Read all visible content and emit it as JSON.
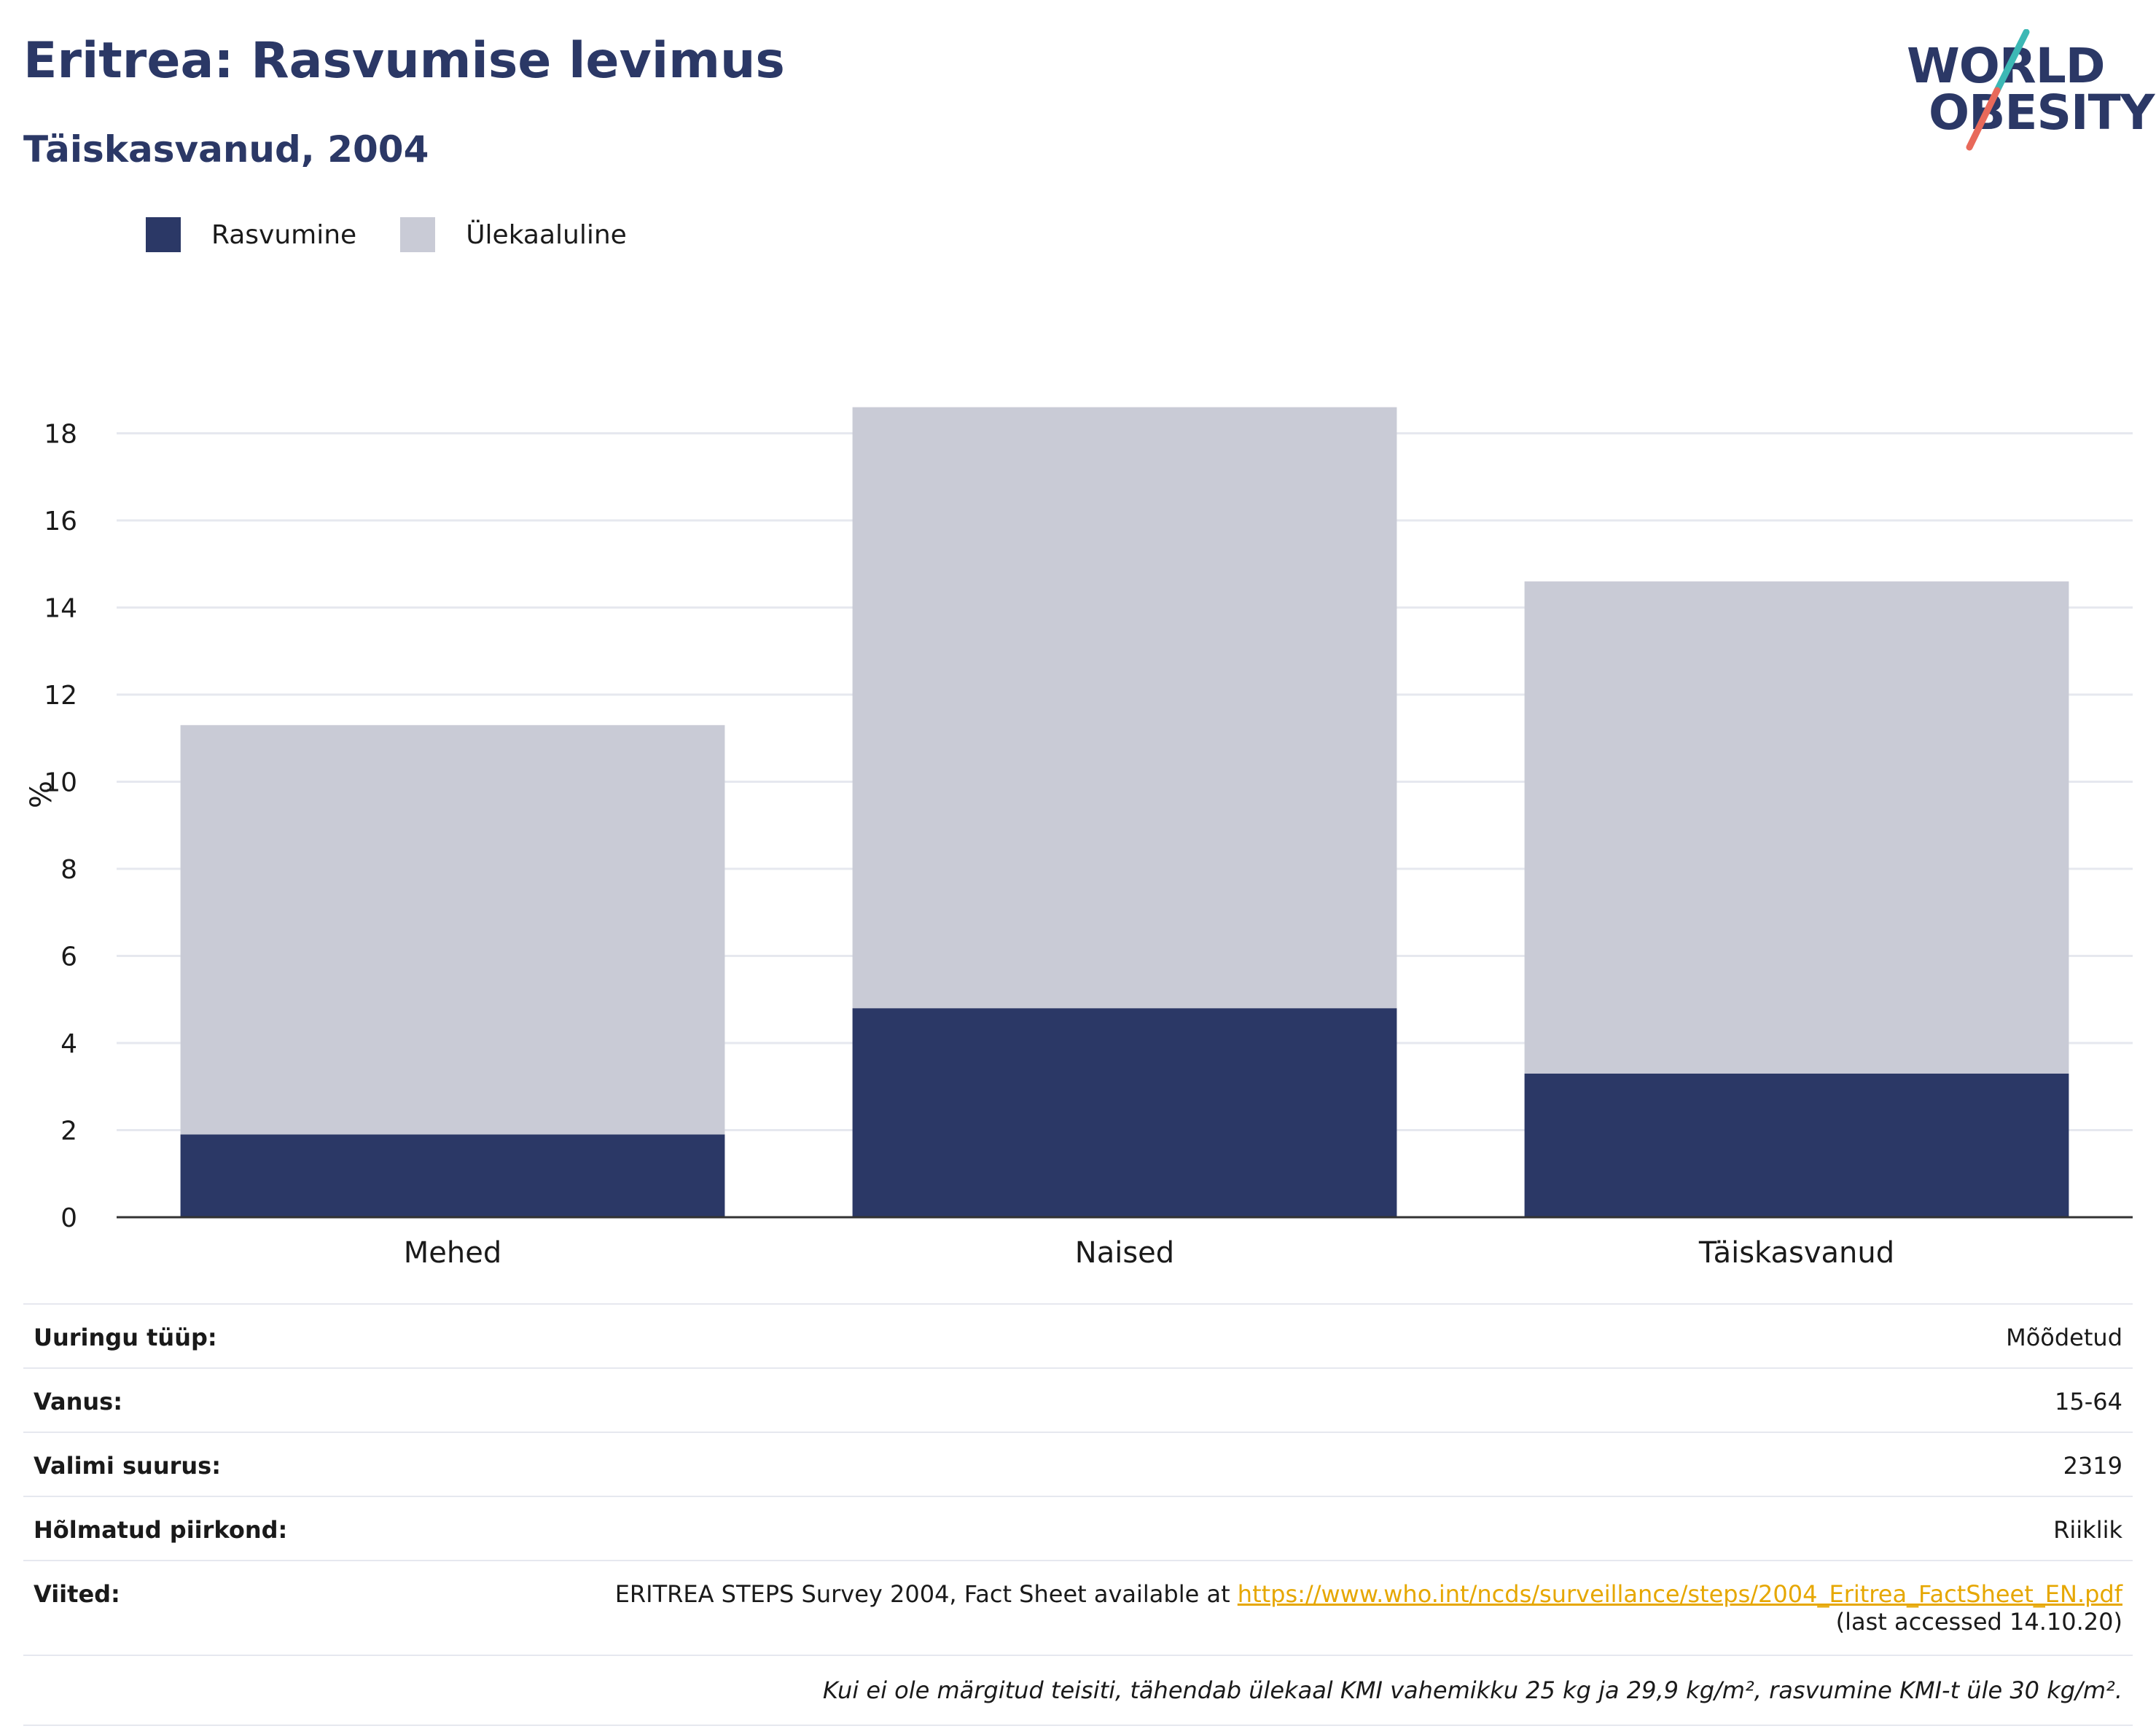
{
  "header": {
    "title": "Eritrea: Rasvumise levimus",
    "subtitle": "Täiskasvanud, 2004"
  },
  "logo": {
    "line1": "WORLD",
    "line2": "OBESITY"
  },
  "colors": {
    "obesity": "#2b3866",
    "overweight": "#c9cbd6",
    "accent_teal": "#3cb8b5",
    "accent_coral": "#e8695a",
    "link": "#e6a700"
  },
  "legend": [
    {
      "label": "Rasvumine",
      "color": "#2b3866"
    },
    {
      "label": "Ülekaaluline",
      "color": "#c9cbd6"
    }
  ],
  "chart_data": {
    "type": "bar",
    "stacked": true,
    "categories": [
      "Mehed",
      "Naised",
      "Täiskasvanud"
    ],
    "series": [
      {
        "name": "Rasvumine",
        "values": [
          1.9,
          4.8,
          3.3
        ]
      },
      {
        "name": "Ülekaaluline",
        "values": [
          9.4,
          13.8,
          11.3
        ]
      }
    ],
    "ylabel": "%",
    "ylim": [
      0,
      19
    ],
    "yticks": [
      "0",
      "2",
      "4",
      "6",
      "8",
      "10",
      "12",
      "14",
      "16",
      "18"
    ],
    "grid": true,
    "legend_position": "top-left"
  },
  "meta": {
    "survey_type_label": "Uuringu tüüp:",
    "survey_type_value": "Mõõdetud",
    "age_label": "Vanus:",
    "age_value": "15-64",
    "sample_label": "Valimi suurus:",
    "sample_value": "2319",
    "region_label": "Hõlmatud piirkond:",
    "region_value": "Riiklik",
    "refs_label": "Viited:",
    "refs_text": "ERITREA STEPS Survey 2004, Fact Sheet available at ",
    "refs_link": "https://www.who.int/ncds/surveillance/steps/2004_Eritrea_FactSheet_EN.pdf",
    "refs_accessed": "(last accessed 14.10.20)",
    "note": "Kui ei ole märgitud teisiti, tähendab ülekaal KMI vahemikku 25 kg ja 29,9 kg/m², rasvumine KMI-t üle 30 kg/m²."
  }
}
